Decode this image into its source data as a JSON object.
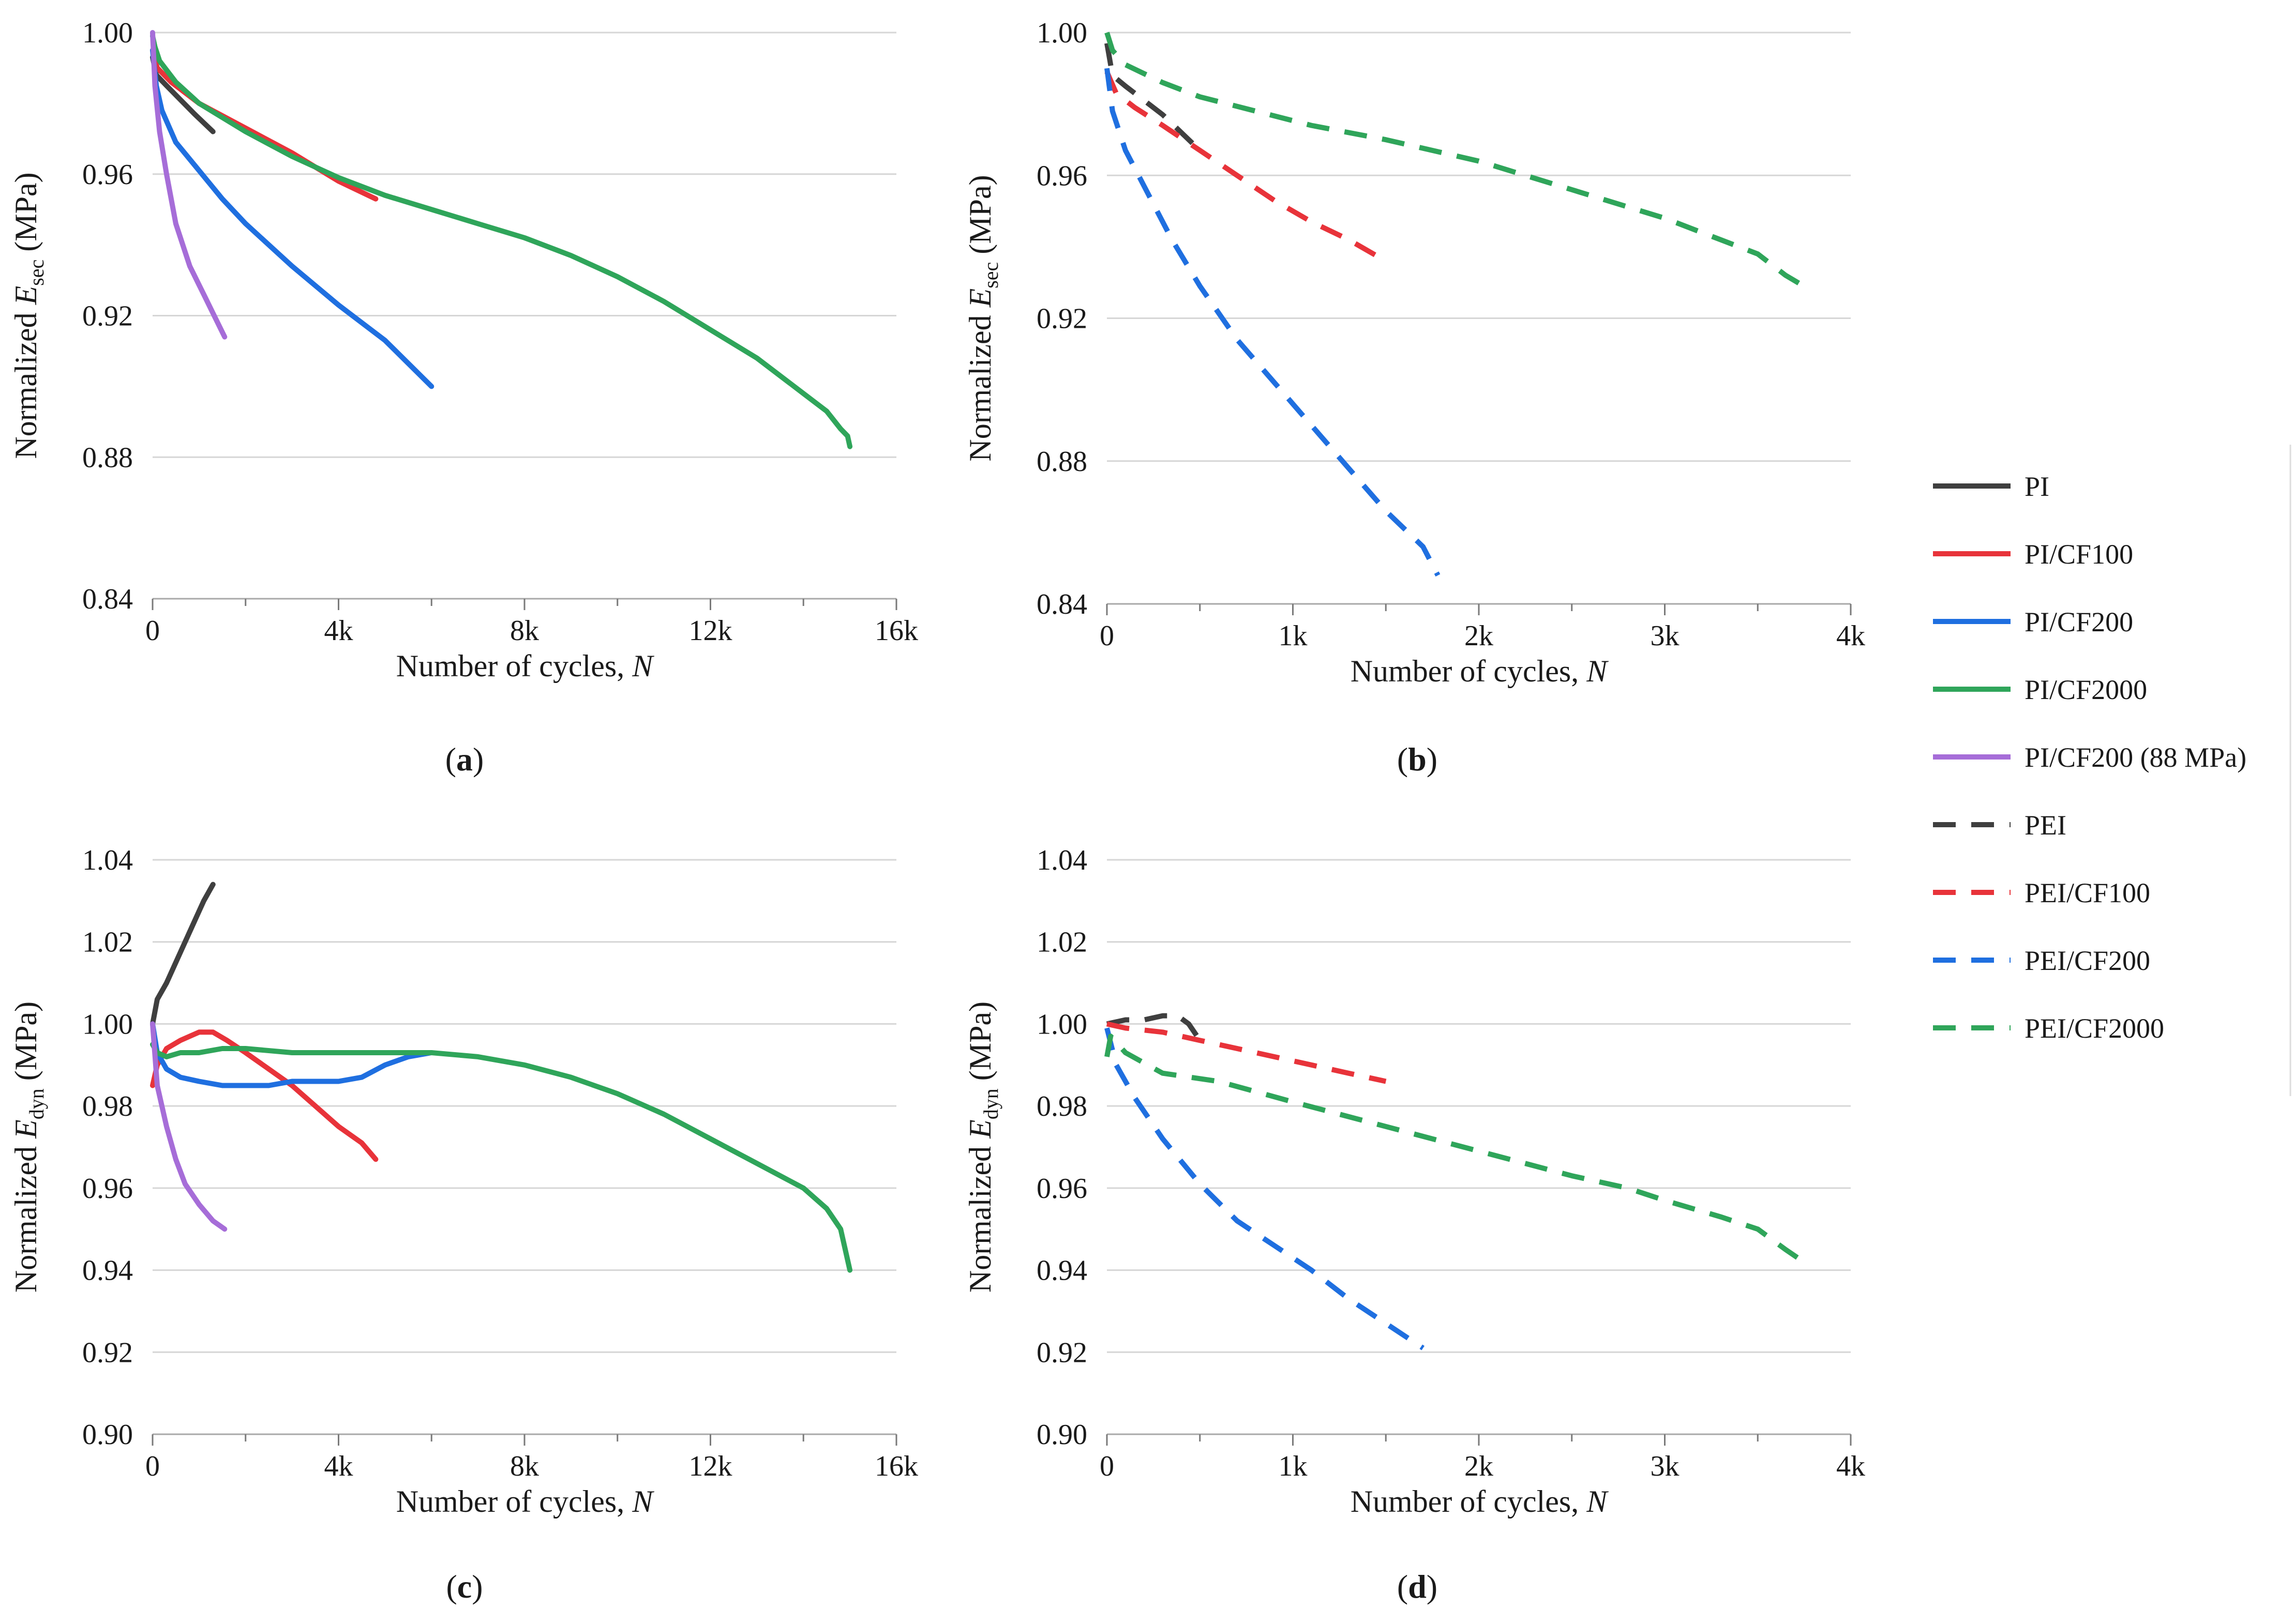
{
  "series_styles": {
    "PI": {
      "color": "#3f3f3f",
      "dash": false
    },
    "PI/CF100": {
      "color": "#e8333a",
      "dash": false
    },
    "PI/CF200": {
      "color": "#1f6fe0",
      "dash": false
    },
    "PI/CF2000": {
      "color": "#2fa55a",
      "dash": false
    },
    "PI/CF200 (88 MPa)": {
      "color": "#a66dd8",
      "dash": false
    },
    "PEI": {
      "color": "#3f3f3f",
      "dash": true
    },
    "PEI/CF100": {
      "color": "#e8333a",
      "dash": true
    },
    "PEI/CF200": {
      "color": "#1f6fe0",
      "dash": true
    },
    "PEI/CF2000": {
      "color": "#2fa55a",
      "dash": true
    }
  },
  "legend": {
    "entries": [
      "PI",
      "PI/CF100",
      "PI/CF200",
      "PI/CF2000",
      "PI/CF200 (88 MPa)",
      "PEI",
      "PEI/CF100",
      "PEI/CF200",
      "PEI/CF2000"
    ]
  },
  "chart_data": [
    {
      "panel": "(a)",
      "panel_letter": "a",
      "type": "line",
      "xlabel": "Number of cycles, ",
      "xlabel_italic": "N",
      "ylabel_main": "Normalized ",
      "ylabel_sym": "E",
      "ylabel_sub": "sec",
      "ylabel_unit": " (MPa)",
      "xlim": [
        0,
        16000
      ],
      "ylim": [
        0.84,
        1.0
      ],
      "xticks": [
        0,
        4000,
        8000,
        12000,
        16000
      ],
      "xtick_labels": [
        "0",
        "4k",
        "8k",
        "12k",
        "16k"
      ],
      "xminor": [
        2000,
        6000,
        10000,
        14000
      ],
      "yticks": [
        0.84,
        0.88,
        0.92,
        0.96,
        1.0
      ],
      "ytick_labels": [
        "0.84",
        "0.88",
        "0.92",
        "0.96",
        "1.00"
      ],
      "series": [
        {
          "name": "PI",
          "x": [
            0,
            80,
            300,
            600,
            900,
            1300
          ],
          "y": [
            0.993,
            0.988,
            0.985,
            0.981,
            0.977,
            0.972
          ]
        },
        {
          "name": "PI/CF100",
          "x": [
            0,
            100,
            400,
            1000,
            2000,
            3000,
            4000,
            4800
          ],
          "y": [
            0.995,
            0.99,
            0.986,
            0.98,
            0.973,
            0.966,
            0.958,
            0.953
          ]
        },
        {
          "name": "PI/CF200",
          "x": [
            0,
            80,
            200,
            500,
            1000,
            1500,
            2000,
            3000,
            4000,
            5000,
            6000
          ],
          "y": [
            0.995,
            0.985,
            0.978,
            0.969,
            0.961,
            0.953,
            0.946,
            0.934,
            0.923,
            0.913,
            0.9
          ]
        },
        {
          "name": "PI/CF2000",
          "x": [
            0,
            50,
            150,
            500,
            1000,
            2000,
            3000,
            4000,
            5000,
            6000,
            7000,
            8000,
            9000,
            10000,
            11000,
            12000,
            13000,
            14000,
            14500,
            14800,
            14950,
            15000
          ],
          "y": [
            0.999,
            0.996,
            0.992,
            0.986,
            0.98,
            0.972,
            0.965,
            0.959,
            0.954,
            0.95,
            0.946,
            0.942,
            0.937,
            0.931,
            0.924,
            0.916,
            0.908,
            0.898,
            0.893,
            0.888,
            0.886,
            0.883
          ]
        },
        {
          "name": "PI/CF200 (88 MPa)",
          "x": [
            0,
            50,
            150,
            300,
            500,
            800,
            1100,
            1400,
            1550
          ],
          "y": [
            1.0,
            0.985,
            0.972,
            0.96,
            0.946,
            0.934,
            0.926,
            0.918,
            0.914
          ]
        }
      ]
    },
    {
      "panel": "(b)",
      "panel_letter": "b",
      "type": "line",
      "xlabel": "Number of cycles, ",
      "xlabel_italic": "N",
      "ylabel_main": "Normalized ",
      "ylabel_sym": "E",
      "ylabel_sub": "sec",
      "ylabel_unit": " (MPa)",
      "xlim": [
        0,
        4000
      ],
      "ylim": [
        0.84,
        1.0
      ],
      "xticks": [
        0,
        1000,
        2000,
        3000,
        4000
      ],
      "xtick_labels": [
        "0",
        "1k",
        "2k",
        "3k",
        "4k"
      ],
      "xminor": [
        500,
        1500,
        2500,
        3500
      ],
      "yticks": [
        0.84,
        0.88,
        0.92,
        0.96,
        1.0
      ],
      "ytick_labels": [
        "0.84",
        "0.88",
        "0.92",
        "0.96",
        "1.00"
      ],
      "series": [
        {
          "name": "PEI",
          "x": [
            0,
            30,
            100,
            200,
            300,
            400,
            500
          ],
          "y": [
            0.997,
            0.988,
            0.985,
            0.981,
            0.977,
            0.972,
            0.967
          ]
        },
        {
          "name": "PEI/CF100",
          "x": [
            0,
            50,
            150,
            300,
            500,
            700,
            900,
            1100,
            1300,
            1500
          ],
          "y": [
            0.989,
            0.983,
            0.979,
            0.974,
            0.967,
            0.96,
            0.953,
            0.947,
            0.942,
            0.936
          ]
        },
        {
          "name": "PEI/CF200",
          "x": [
            0,
            30,
            100,
            200,
            350,
            500,
            700,
            900,
            1100,
            1300,
            1500,
            1700,
            1780
          ],
          "y": [
            0.99,
            0.978,
            0.967,
            0.957,
            0.942,
            0.929,
            0.914,
            0.902,
            0.89,
            0.878,
            0.866,
            0.856,
            0.848
          ]
        },
        {
          "name": "PEI/CF2000",
          "x": [
            0,
            30,
            100,
            300,
            500,
            800,
            1100,
            1500,
            2000,
            2500,
            3000,
            3300,
            3500,
            3650,
            3780
          ],
          "y": [
            1.0,
            0.995,
            0.991,
            0.986,
            0.982,
            0.978,
            0.974,
            0.97,
            0.964,
            0.956,
            0.948,
            0.942,
            0.938,
            0.932,
            0.928
          ]
        }
      ]
    },
    {
      "panel": "(c)",
      "panel_letter": "c",
      "type": "line",
      "xlabel": "Number of cycles, ",
      "xlabel_italic": "N",
      "ylabel_main": "Normalized ",
      "ylabel_sym": "E",
      "ylabel_sub": "dyn",
      "ylabel_unit": " (MPa)",
      "xlim": [
        0,
        16000
      ],
      "ylim": [
        0.9,
        1.04
      ],
      "xticks": [
        0,
        4000,
        8000,
        12000,
        16000
      ],
      "xtick_labels": [
        "0",
        "4k",
        "8k",
        "12k",
        "16k"
      ],
      "xminor": [
        2000,
        6000,
        10000,
        14000
      ],
      "yticks": [
        0.9,
        0.92,
        0.94,
        0.96,
        0.98,
        1.0,
        1.02,
        1.04
      ],
      "ytick_labels": [
        "0.90",
        "0.92",
        "0.94",
        "0.96",
        "0.98",
        "1.00",
        "1.02",
        "1.04"
      ],
      "series": [
        {
          "name": "PI",
          "x": [
            0,
            100,
            300,
            500,
            700,
            900,
            1100,
            1300
          ],
          "y": [
            1.0,
            1.006,
            1.01,
            1.015,
            1.02,
            1.025,
            1.03,
            1.034
          ]
        },
        {
          "name": "PI/CF100",
          "x": [
            0,
            100,
            300,
            600,
            1000,
            1300,
            1600,
            2000,
            2500,
            3000,
            3500,
            4000,
            4500,
            4800
          ],
          "y": [
            0.985,
            0.99,
            0.994,
            0.996,
            0.998,
            0.998,
            0.996,
            0.993,
            0.989,
            0.985,
            0.98,
            0.975,
            0.971,
            0.967
          ]
        },
        {
          "name": "PI/CF200",
          "x": [
            0,
            100,
            300,
            600,
            1000,
            1500,
            2000,
            2500,
            3000,
            3500,
            4000,
            4500,
            5000,
            5500,
            6000
          ],
          "y": [
            1.0,
            0.993,
            0.989,
            0.987,
            0.986,
            0.985,
            0.985,
            0.985,
            0.986,
            0.986,
            0.986,
            0.987,
            0.99,
            0.992,
            0.993
          ]
        },
        {
          "name": "PI/CF2000",
          "x": [
            0,
            100,
            300,
            600,
            1000,
            1500,
            2000,
            3000,
            4000,
            5000,
            6000,
            7000,
            8000,
            9000,
            10000,
            11000,
            12000,
            13000,
            14000,
            14500,
            14800,
            15000
          ],
          "y": [
            0.995,
            0.993,
            0.992,
            0.993,
            0.993,
            0.994,
            0.994,
            0.993,
            0.993,
            0.993,
            0.993,
            0.992,
            0.99,
            0.987,
            0.983,
            0.978,
            0.972,
            0.966,
            0.96,
            0.955,
            0.95,
            0.94
          ]
        },
        {
          "name": "PI/CF200 (88 MPa)",
          "x": [
            0,
            100,
            300,
            500,
            700,
            1000,
            1300,
            1550
          ],
          "y": [
            1.0,
            0.985,
            0.975,
            0.967,
            0.961,
            0.956,
            0.952,
            0.95
          ]
        }
      ]
    },
    {
      "panel": "(d)",
      "panel_letter": "d",
      "type": "line",
      "xlabel": "Number of cycles, ",
      "xlabel_italic": "N",
      "ylabel_main": "Normalized ",
      "ylabel_sym": "E",
      "ylabel_sub": "dyn",
      "ylabel_unit": " (MPa)",
      "xlim": [
        0,
        4000
      ],
      "ylim": [
        0.9,
        1.04
      ],
      "xticks": [
        0,
        1000,
        2000,
        3000,
        4000
      ],
      "xtick_labels": [
        "0",
        "1k",
        "2k",
        "3k",
        "4k"
      ],
      "xminor": [
        500,
        1500,
        2500,
        3500
      ],
      "yticks": [
        0.9,
        0.92,
        0.94,
        0.96,
        0.98,
        1.0,
        1.02,
        1.04
      ],
      "ytick_labels": [
        "0.90",
        "0.92",
        "0.94",
        "0.96",
        "0.98",
        "1.00",
        "1.02",
        "1.04"
      ],
      "series": [
        {
          "name": "PEI",
          "x": [
            0,
            100,
            200,
            300,
            380,
            440,
            500
          ],
          "y": [
            1.0,
            1.001,
            1.001,
            1.002,
            1.002,
            1.0,
            0.996
          ]
        },
        {
          "name": "PEI/CF100",
          "x": [
            0,
            100,
            300,
            500,
            700,
            900,
            1100,
            1300,
            1500
          ],
          "y": [
            1.0,
            0.999,
            0.998,
            0.996,
            0.994,
            0.992,
            0.99,
            0.988,
            0.986
          ]
        },
        {
          "name": "PEI/CF200",
          "x": [
            0,
            50,
            150,
            300,
            500,
            700,
            900,
            1100,
            1300,
            1500,
            1700
          ],
          "y": [
            0.999,
            0.99,
            0.982,
            0.972,
            0.961,
            0.952,
            0.946,
            0.94,
            0.933,
            0.927,
            0.921
          ]
        },
        {
          "name": "PEI/CF2000",
          "x": [
            0,
            20,
            100,
            300,
            600,
            1000,
            1500,
            2000,
            2500,
            2800,
            3000,
            3300,
            3500,
            3650,
            3780
          ],
          "y": [
            0.992,
            0.997,
            0.993,
            0.988,
            0.986,
            0.981,
            0.975,
            0.969,
            0.963,
            0.96,
            0.957,
            0.953,
            0.95,
            0.945,
            0.941
          ]
        }
      ]
    }
  ]
}
